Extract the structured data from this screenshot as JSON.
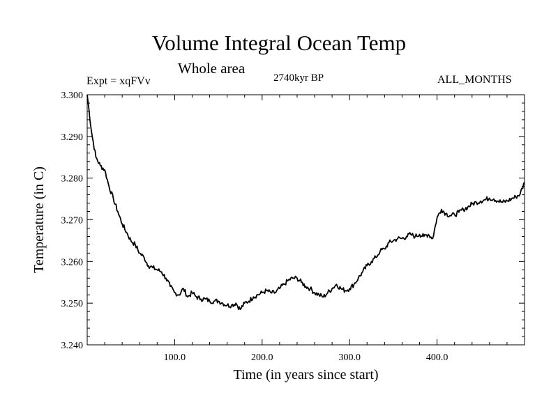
{
  "chart_data": {
    "type": "line",
    "title": "Volume Integral Ocean Temp",
    "subtitle": "Whole area",
    "left_label": "Expt = xqFVv",
    "center_label": "2740kyr BP",
    "right_label": "ALL_MONTHS",
    "xlabel": "Time (in years since start)",
    "ylabel": "Temperature (in C)",
    "xlim": [
      0,
      500
    ],
    "ylim": [
      3.24,
      3.3
    ],
    "xticks": [
      100,
      200,
      300,
      400
    ],
    "xtick_labels": [
      "100.0",
      "200.0",
      "300.0",
      "400.0"
    ],
    "yticks": [
      3.24,
      3.25,
      3.26,
      3.27,
      3.28,
      3.29,
      3.3
    ],
    "ytick_labels": [
      "3.240",
      "3.250",
      "3.260",
      "3.270",
      "3.280",
      "3.290",
      "3.300"
    ],
    "grid": false,
    "series": [
      {
        "name": "Volume Integral Ocean Temp",
        "x": [
          0,
          5,
          10,
          15,
          20,
          25,
          30,
          35,
          40,
          45,
          50,
          55,
          60,
          65,
          70,
          75,
          80,
          85,
          90,
          95,
          100,
          105,
          110,
          115,
          120,
          125,
          130,
          135,
          140,
          145,
          150,
          155,
          160,
          165,
          170,
          175,
          180,
          185,
          190,
          195,
          200,
          205,
          210,
          215,
          220,
          225,
          230,
          235,
          240,
          245,
          250,
          255,
          260,
          265,
          270,
          275,
          280,
          285,
          290,
          295,
          300,
          305,
          310,
          315,
          320,
          325,
          330,
          335,
          340,
          345,
          350,
          355,
          360,
          365,
          370,
          375,
          380,
          385,
          390,
          395,
          400,
          405,
          410,
          415,
          420,
          425,
          430,
          435,
          440,
          445,
          450,
          455,
          460,
          465,
          470,
          475,
          480,
          485,
          490,
          495,
          500
        ],
        "values": [
          3.3,
          3.291,
          3.285,
          3.283,
          3.282,
          3.278,
          3.275,
          3.272,
          3.269,
          3.267,
          3.265,
          3.264,
          3.262,
          3.261,
          3.259,
          3.2585,
          3.258,
          3.2575,
          3.256,
          3.254,
          3.2525,
          3.252,
          3.2535,
          3.2515,
          3.2525,
          3.2515,
          3.251,
          3.251,
          3.2505,
          3.2505,
          3.2505,
          3.25,
          3.2495,
          3.2495,
          3.25,
          3.2485,
          3.25,
          3.2505,
          3.2515,
          3.252,
          3.2525,
          3.253,
          3.2525,
          3.2525,
          3.2535,
          3.2545,
          3.2555,
          3.256,
          3.256,
          3.255,
          3.254,
          3.2535,
          3.2525,
          3.252,
          3.2515,
          3.2525,
          3.2535,
          3.2545,
          3.2535,
          3.253,
          3.2535,
          3.2545,
          3.256,
          3.2575,
          3.259,
          3.26,
          3.261,
          3.2625,
          3.263,
          3.2645,
          3.265,
          3.2655,
          3.2655,
          3.266,
          3.2665,
          3.266,
          3.2665,
          3.266,
          3.2665,
          3.2655,
          3.2705,
          3.2725,
          3.2715,
          3.271,
          3.2712,
          3.2718,
          3.2725,
          3.273,
          3.2738,
          3.2742,
          3.2745,
          3.2748,
          3.2752,
          3.275,
          3.2745,
          3.2742,
          3.2745,
          3.275,
          3.2755,
          3.2762,
          3.279
        ]
      }
    ]
  }
}
